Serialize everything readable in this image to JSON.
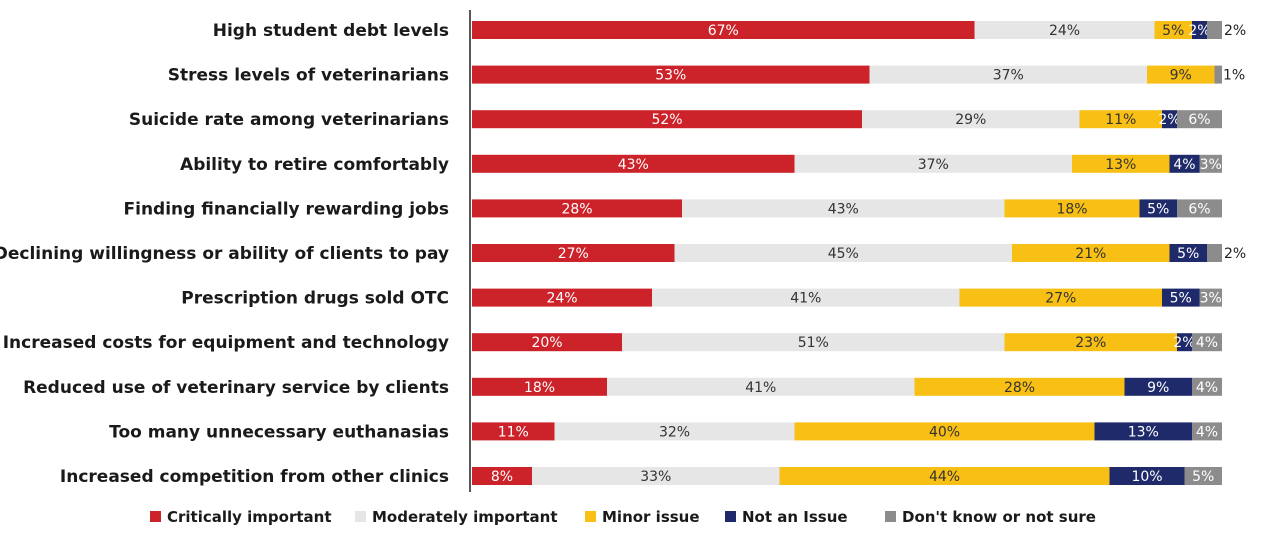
{
  "chart_data": {
    "type": "bar",
    "orientation": "horizontal",
    "stacked": true,
    "value_format": "percent",
    "categories": [
      "High student debt levels",
      "Stress levels of veterinarians",
      "Suicide rate among veterinarians",
      "Ability to retire comfortably",
      "Finding financially rewarding jobs",
      "Declining willingness or ability of clients to pay",
      "Prescription drugs sold OTC",
      "Increased costs for equipment and technology",
      "Reduced use of veterinary service by clients",
      "Too many unnecessary euthanasias",
      "Increased competition from other clinics"
    ],
    "series": [
      {
        "name": "Critically important",
        "color": "#cc2229",
        "label_color": "#ffffff",
        "values": [
          67,
          53,
          52,
          43,
          28,
          27,
          24,
          20,
          18,
          11,
          8
        ]
      },
      {
        "name": "Moderately important",
        "color": "#e6e6e6",
        "label_color": "#333333",
        "values": [
          24,
          37,
          29,
          37,
          43,
          45,
          41,
          51,
          41,
          32,
          33
        ]
      },
      {
        "name": "Minor issue",
        "color": "#f8bf14",
        "label_color": "#333333",
        "values": [
          5,
          9,
          11,
          13,
          18,
          21,
          27,
          23,
          28,
          40,
          44
        ]
      },
      {
        "name": "Not an Issue",
        "color": "#1f2a6b",
        "label_color": "#ffffff",
        "values": [
          2,
          0,
          2,
          4,
          5,
          5,
          5,
          2,
          9,
          13,
          10
        ]
      },
      {
        "name": "Don't know or not sure",
        "color": "#8c8c8c",
        "label_color": "#ffffff",
        "values": [
          2,
          1,
          6,
          3,
          6,
          2,
          3,
          4,
          4,
          4,
          5
        ]
      }
    ],
    "value_labels": [
      [
        "67%",
        "53%",
        "52%",
        "43%",
        "28%",
        "27%",
        "24%",
        "20%",
        "18%",
        "11%",
        "8%"
      ],
      [
        "24%",
        "37%",
        "29%",
        "37%",
        "43%",
        "45%",
        "41%",
        "51%",
        "41%",
        "32%",
        "33%"
      ],
      [
        "5%",
        "9%",
        "11%",
        "13%",
        "18%",
        "21%",
        "27%",
        "23%",
        "28%",
        "40%",
        "44%"
      ],
      [
        "2%",
        "",
        "2%",
        "4%",
        "5%",
        "5%",
        "5%",
        "2%",
        "9%",
        "13%",
        "10%"
      ],
      [
        "2%",
        "1%",
        "6%",
        "3%",
        "6%",
        "2%",
        "3%",
        "4%",
        "4%",
        "4%",
        "5%"
      ]
    ],
    "xlim": [
      0,
      100
    ],
    "grid": false,
    "legend_position": "bottom"
  }
}
